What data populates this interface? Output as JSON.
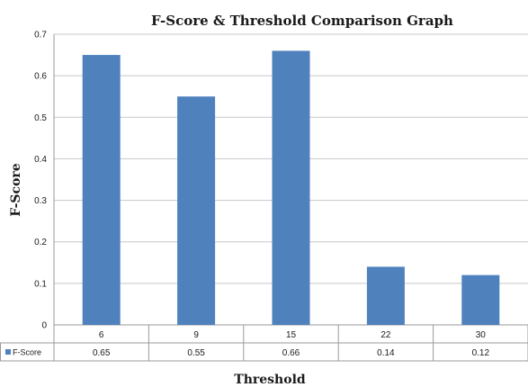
{
  "chart_data": {
    "type": "bar",
    "title": "F-Score & Threshold Comparison Graph",
    "xlabel": "Threshold",
    "ylabel": "F-Score",
    "categories": [
      "6",
      "9",
      "15",
      "22",
      "30"
    ],
    "series": [
      {
        "name": "F-Score",
        "values": [
          0.65,
          0.55,
          0.66,
          0.14,
          0.12
        ],
        "value_labels": [
          "0.65",
          "0.55",
          "0.66",
          "0.14",
          "0.12"
        ],
        "color": "#4f81bd"
      }
    ],
    "ylim": [
      0,
      0.7
    ],
    "yticks": [
      0,
      0.1,
      0.2,
      0.3,
      0.4,
      0.5,
      0.6,
      0.7
    ],
    "ytick_labels": [
      "0",
      "0.1",
      "0.2",
      "0.3",
      "0.4",
      "0.5",
      "0.6",
      "0.7"
    ],
    "grid": true,
    "legend": "data-table-left",
    "data_table": true
  }
}
